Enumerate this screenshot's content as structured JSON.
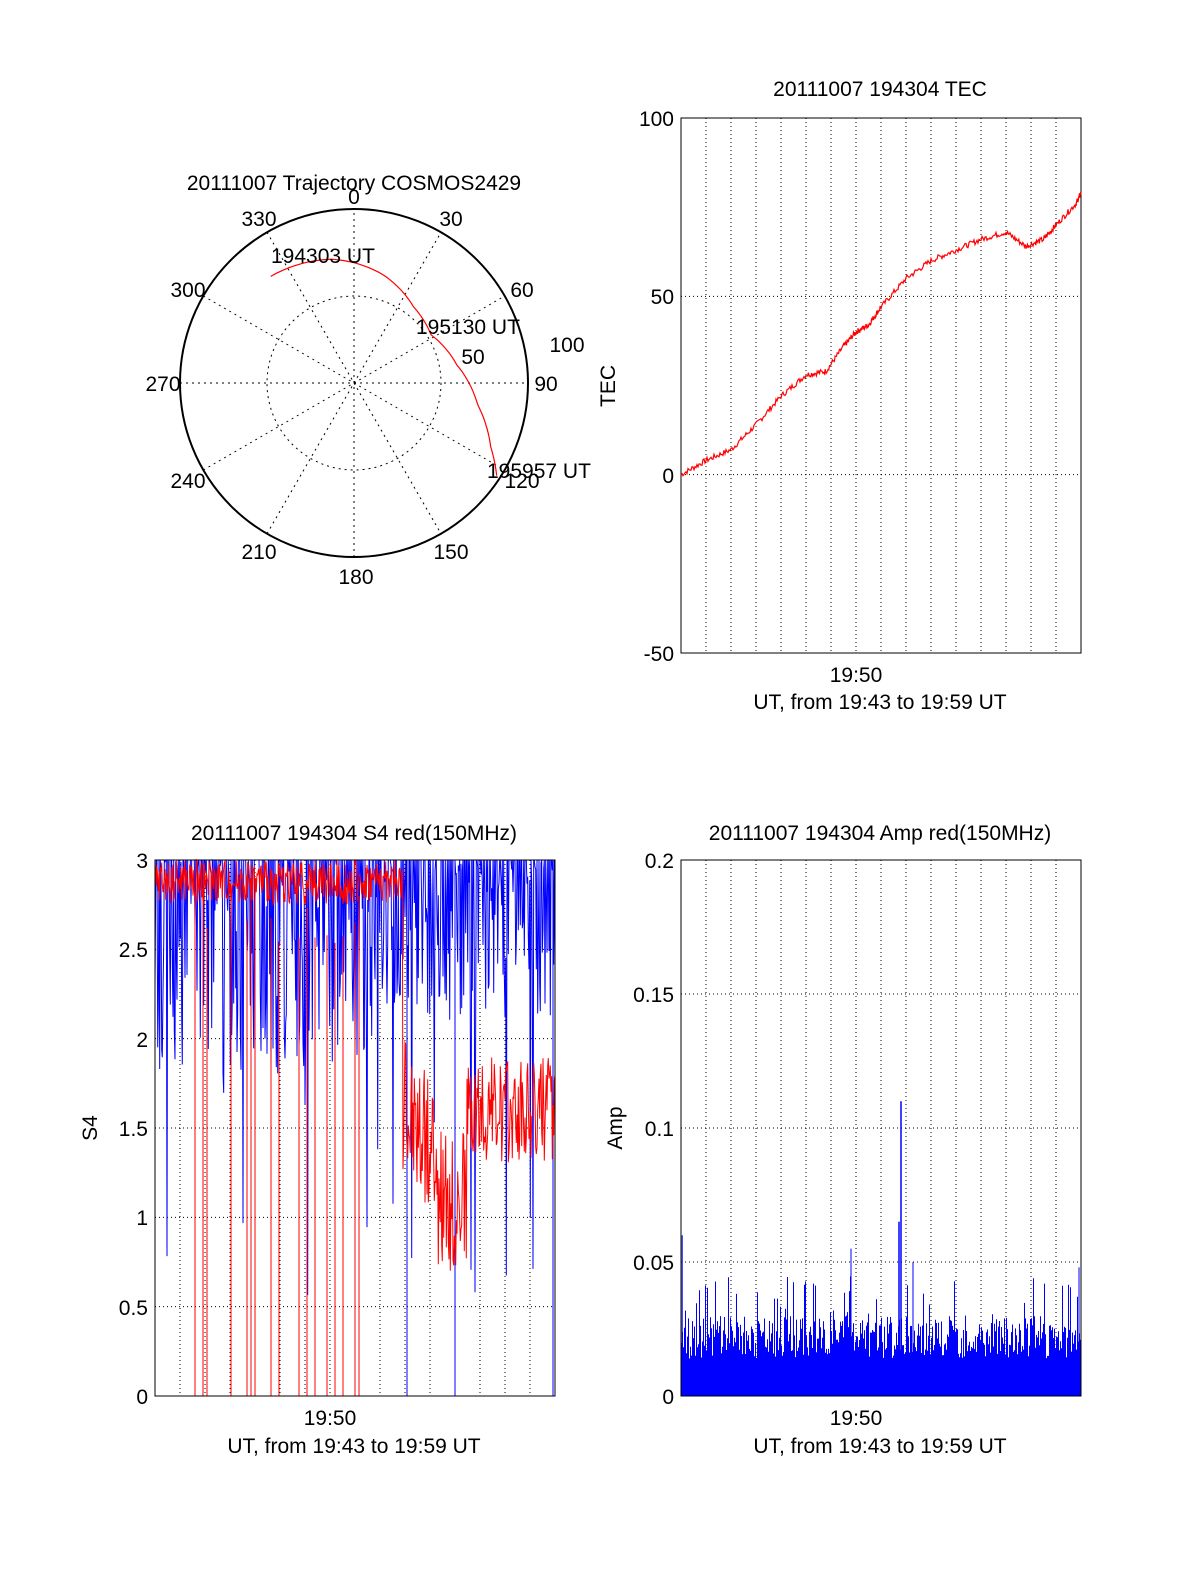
{
  "chart_data": [
    {
      "type": "polar",
      "title": "20111007 Trajectory COSMOS2429",
      "azimuth_labels": [
        "0",
        "30",
        "60",
        "90",
        "120",
        "150",
        "180",
        "210",
        "240",
        "270",
        "300",
        "330"
      ],
      "radial_labels": [
        "50",
        "100"
      ],
      "annotations": [
        "194303 UT",
        "195130 UT",
        "195957 UT"
      ],
      "trajectory": {
        "color": "#ff0000",
        "points": [
          {
            "az": 322,
            "el": 20,
            "label": "194303 UT"
          },
          {
            "az": 350,
            "el": 25
          },
          {
            "az": 15,
            "el": 32
          },
          {
            "az": 38,
            "el": 40
          },
          {
            "az": 58,
            "el": 43,
            "label": "195130 UT"
          },
          {
            "az": 80,
            "el": 36
          },
          {
            "az": 100,
            "el": 25
          },
          {
            "az": 115,
            "el": 12
          },
          {
            "az": 123,
            "el": 2,
            "label": "195957 UT"
          }
        ]
      }
    },
    {
      "type": "line",
      "title": "20111007 194304 TEC",
      "ylabel": "TEC",
      "xtick_label": "19:50",
      "xlabel": "UT, from 19:43 to 19:59 UT",
      "ylim": [
        -50,
        100
      ],
      "yticks": [
        "100",
        "50",
        "0",
        "-50"
      ],
      "grid": true,
      "series": [
        {
          "color": "#ff0000",
          "x_minutes": [
            43.0,
            44.0,
            45.0,
            46.0,
            47.0,
            48.0,
            48.8,
            49.5,
            50.0,
            50.5,
            51.0,
            52.0,
            53.0,
            54.0,
            55.0,
            56.0,
            56.8,
            57.5,
            58.0,
            58.8,
            59.0
          ],
          "values": [
            0,
            4,
            7,
            14,
            22,
            28,
            29,
            36,
            40,
            42,
            47,
            55,
            60,
            63,
            66,
            68,
            64,
            66,
            70,
            76,
            79
          ]
        }
      ]
    },
    {
      "type": "line",
      "title": "20111007 194304 S4 red(150MHz)",
      "ylabel": "S4",
      "xtick_label": "19:50",
      "xlabel": "UT, from 19:43 to 19:59 UT",
      "ylim": [
        0,
        3
      ],
      "yticks": [
        "3",
        "2.5",
        "2",
        "1.5",
        "1",
        "0.5",
        "0"
      ],
      "grid": true,
      "series": [
        {
          "color": "#0000ff",
          "description_only": false
        },
        {
          "color": "#ff0000",
          "description_only": false
        }
      ]
    },
    {
      "type": "bar",
      "title": "20111007 194304 Amp red(150MHz)",
      "ylabel": "Amp",
      "xtick_label": "19:50",
      "xlabel": "UT, from 19:43 to 19:59 UT",
      "ylim": [
        0,
        0.2
      ],
      "yticks": [
        "0.2",
        "0.15",
        "0.1",
        "0.05",
        "0"
      ],
      "grid": true,
      "peak": {
        "x_minutes": 51.8,
        "value": 0.11
      },
      "series": [
        {
          "color": "#0000ff"
        }
      ]
    }
  ]
}
